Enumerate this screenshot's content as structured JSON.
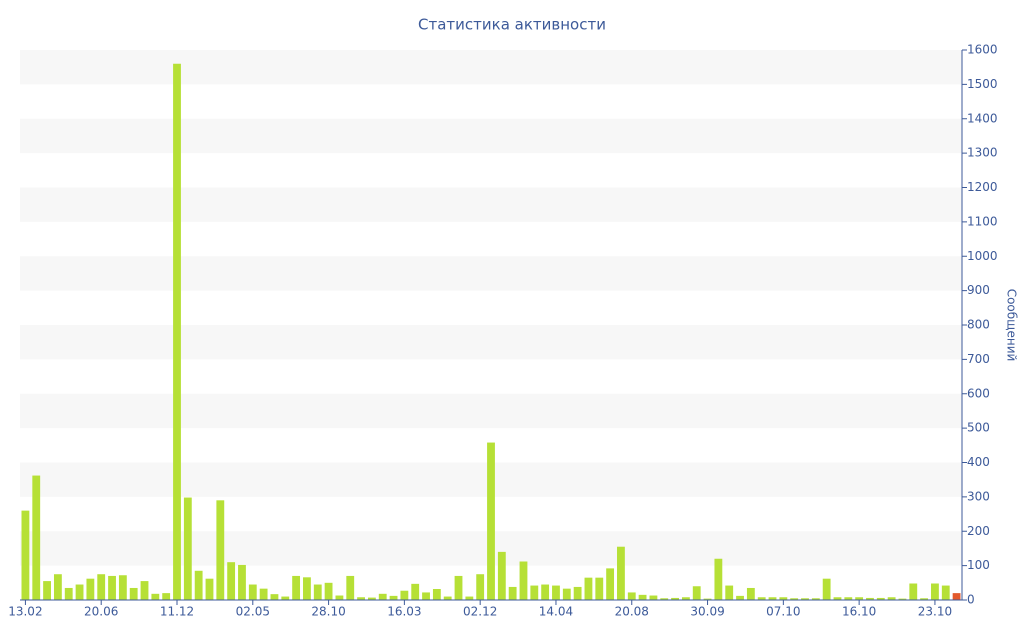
{
  "chart_data": {
    "type": "bar",
    "title": "Статистика активности",
    "y_label": "Сообщений",
    "categories": [
      "13.02",
      null,
      null,
      null,
      null,
      null,
      null,
      "20.06",
      null,
      null,
      null,
      null,
      null,
      null,
      "11.12",
      null,
      null,
      null,
      null,
      null,
      null,
      "02.05",
      null,
      null,
      null,
      null,
      null,
      null,
      "28.10",
      null,
      null,
      null,
      null,
      null,
      null,
      "16.03",
      null,
      null,
      null,
      null,
      null,
      null,
      "02.12",
      null,
      null,
      null,
      null,
      null,
      null,
      "14.04",
      null,
      null,
      null,
      null,
      null,
      null,
      "20.08",
      null,
      null,
      null,
      null,
      null,
      null,
      "30.09",
      null,
      null,
      null,
      null,
      null,
      null,
      "07.10",
      null,
      null,
      null,
      null,
      null,
      null,
      "16.10",
      null,
      null,
      null,
      null,
      null,
      null,
      "23.10",
      null,
      null
    ],
    "values": [
      260,
      362,
      55,
      75,
      35,
      45,
      62,
      75,
      70,
      72,
      35,
      55,
      18,
      20,
      1560,
      298,
      85,
      62,
      290,
      110,
      102,
      45,
      33,
      17,
      10,
      70,
      66,
      45,
      50,
      13,
      70,
      8,
      7,
      18,
      12,
      27,
      47,
      22,
      32,
      10,
      70,
      10,
      75,
      458,
      140,
      38,
      112,
      42,
      45,
      42,
      33,
      38,
      65,
      65,
      92,
      155,
      22,
      15,
      13,
      5,
      6,
      8,
      40,
      4,
      120,
      42,
      12,
      35,
      8,
      8,
      8,
      5,
      5,
      5,
      62,
      8,
      8,
      8,
      6,
      6,
      8,
      4,
      48,
      5,
      48,
      42,
      20
    ],
    "color": "#b6e036",
    "last_color": "#e3592c",
    "ylim": [
      0,
      1600
    ],
    "yticks": [
      0,
      100,
      200,
      300,
      400,
      500,
      600,
      700,
      800,
      900,
      1000,
      1100,
      1200,
      1300,
      1400,
      1500,
      1600
    ],
    "grid_bands": true,
    "y_axis_side": "right"
  }
}
